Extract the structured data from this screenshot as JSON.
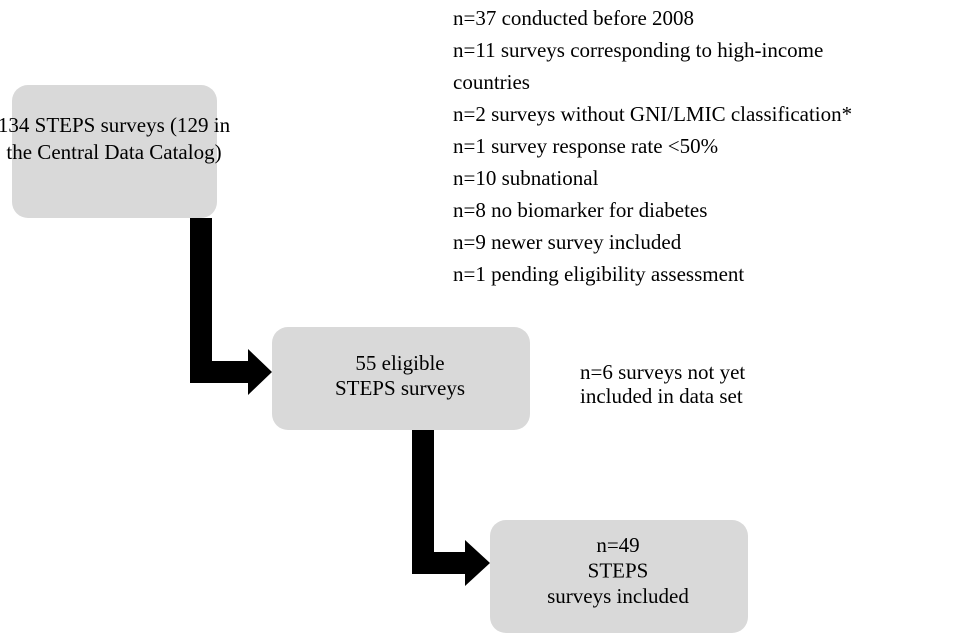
{
  "nodes": [
    {
      "lines": [
        "134 STEPS surveys (129 in",
        "the Central Data Catalog)"
      ]
    },
    {
      "lines": [
        "55 eligible",
        "STEPS surveys"
      ]
    },
    {
      "lines": [
        "n=49",
        "STEPS",
        "surveys included"
      ]
    }
  ],
  "exclusions": [
    {
      "lines": [
        "n=37 conducted before 2008",
        "n=11 surveys corresponding to high-income",
        "countries",
        "n=2 surveys without GNI/LMIC classification*",
        "n=1 survey response rate <50%",
        "n=10 subnational",
        "n=8 no biomarker for diabetes",
        "n=9 newer survey included",
        "n=1 pending eligibility assessment"
      ]
    },
    {
      "lines": [
        "n=6 surveys not yet",
        "included in data set"
      ]
    }
  ]
}
